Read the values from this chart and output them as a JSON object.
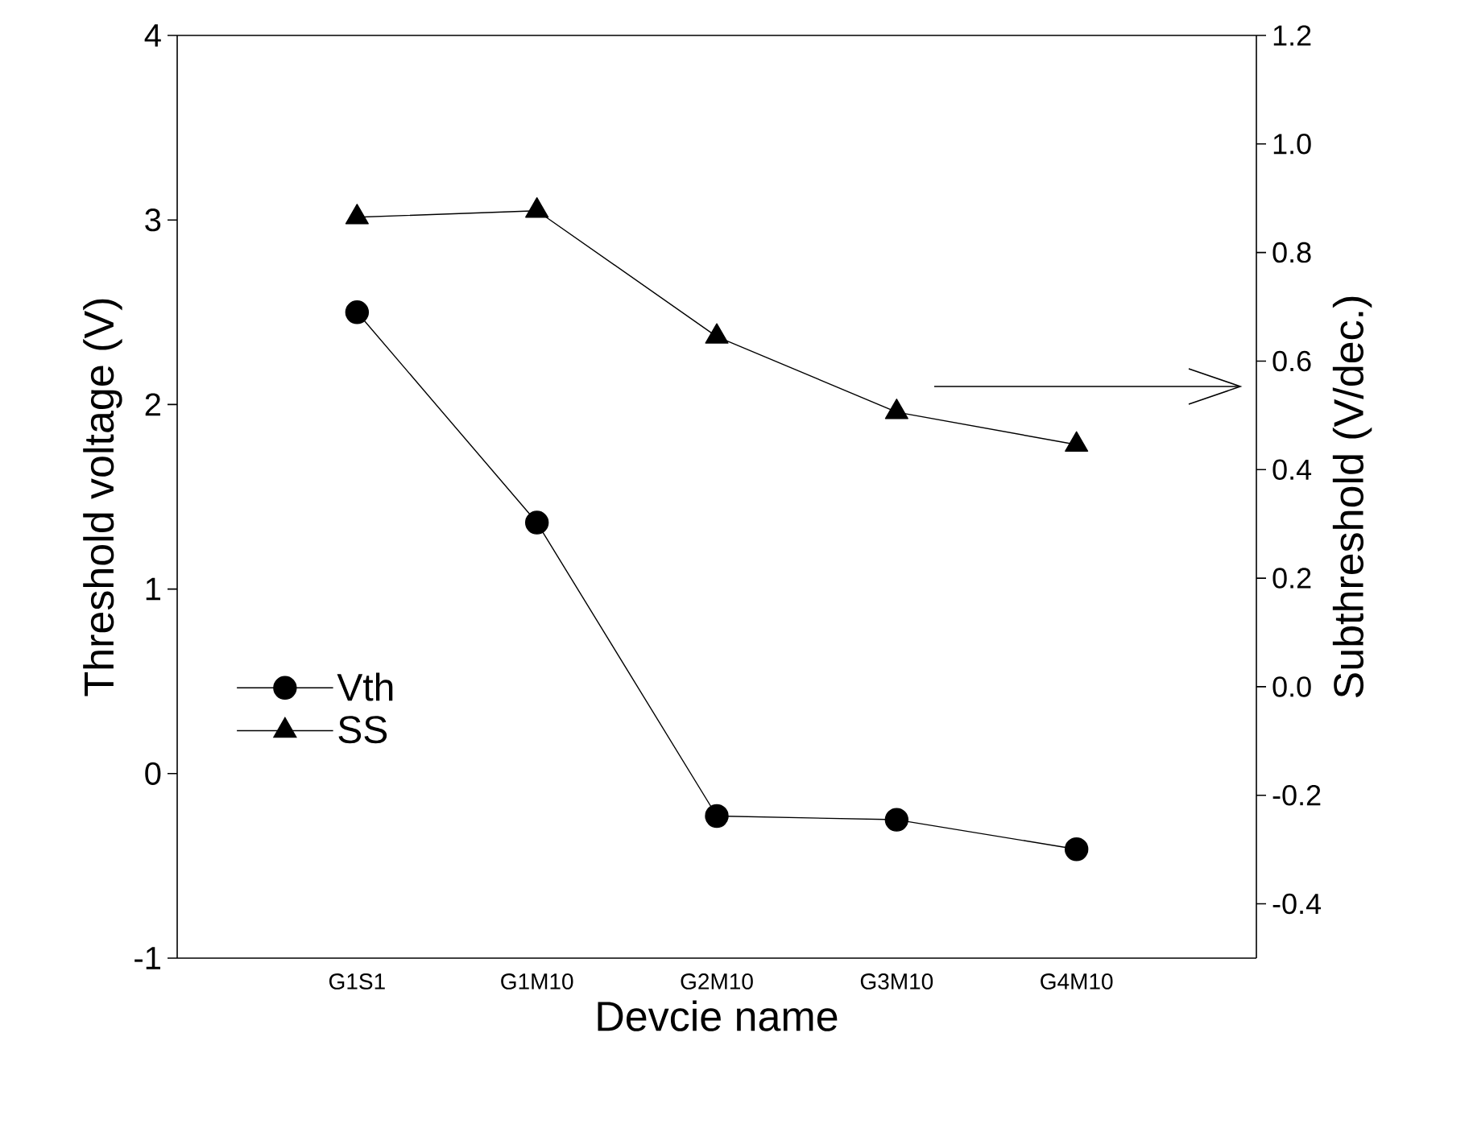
{
  "chart_data": {
    "type": "line",
    "xlabel": "Devcie name",
    "ylabel": "Threshold voltage (V)",
    "y2label": "Subthreshold (V/dec.)",
    "categories": [
      "G1S1",
      "G1M10",
      "G2M10",
      "G3M10",
      "G4M10"
    ],
    "series": [
      {
        "name": "Vth",
        "color": "#000000",
        "marker": "circle",
        "values": [
          2.5,
          1.36,
          -0.23,
          -0.25,
          -0.41
        ]
      },
      {
        "name": "SS",
        "color": "#000000",
        "marker": "triangle",
        "axis": "y2",
        "values": [
          0.865,
          0.877,
          0.645,
          0.506,
          0.446
        ]
      }
    ],
    "ylim": [
      -1,
      4
    ],
    "yticks": [
      -1,
      0,
      1,
      2,
      3,
      4
    ],
    "y2lim": [
      -0.5,
      1.2
    ],
    "y2ticks": [
      {
        "value": -0.4,
        "label": "-0.4"
      },
      {
        "value": -0.2,
        "label": "-0.2"
      },
      {
        "value": 0,
        "label": "0.0"
      },
      {
        "value": 0.2,
        "label": "0.2"
      },
      {
        "value": 0.4,
        "label": "0.4"
      },
      {
        "value": 0.6,
        "label": "0.6"
      },
      {
        "value": 0.8,
        "label": "0.8"
      },
      {
        "value": 1.0,
        "label": "1.0"
      },
      {
        "value": 1.2,
        "label": "1.2"
      }
    ],
    "legend": "left",
    "grid": false,
    "line_style": "solid"
  }
}
